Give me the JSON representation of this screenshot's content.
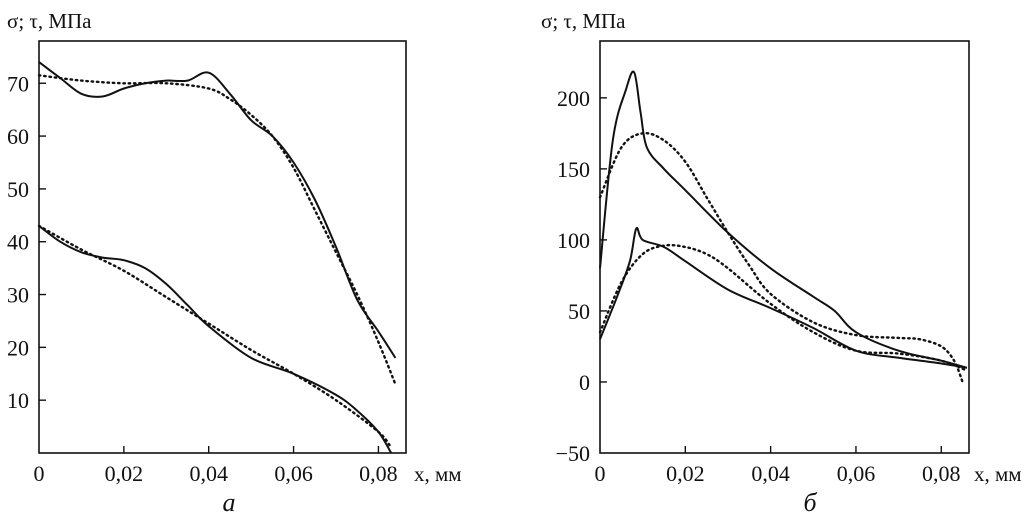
{
  "chart_data": [
    {
      "type": "line",
      "panel_label": "а",
      "ylabel": "σ; τ, МПа",
      "xlabel": "x, мм",
      "xlim": [
        0,
        0.0865
      ],
      "ylim": [
        0,
        78
      ],
      "xticks": [
        0,
        0.02,
        0.04,
        0.06,
        0.08
      ],
      "xtick_labels": [
        "0",
        "0,02",
        "0,04",
        "0,06",
        "0,08"
      ],
      "yticks": [
        10,
        20,
        30,
        40,
        50,
        60,
        70
      ],
      "ytick_labels": [
        "10",
        "20",
        "30",
        "40",
        "50",
        "60",
        "70"
      ],
      "grid": false,
      "series": [
        {
          "style": "solid",
          "x": [
            0,
            0.005,
            0.01,
            0.015,
            0.02,
            0.025,
            0.03,
            0.035,
            0.04,
            0.045,
            0.05,
            0.055,
            0.06,
            0.065,
            0.07,
            0.075,
            0.08,
            0.084
          ],
          "y": [
            74,
            71,
            68,
            67.5,
            69,
            70,
            70.5,
            70.5,
            72,
            68,
            63,
            60,
            55,
            48,
            39,
            29,
            23,
            18
          ]
        },
        {
          "style": "dotted",
          "x": [
            0,
            0.01,
            0.02,
            0.03,
            0.04,
            0.045,
            0.05,
            0.055,
            0.06,
            0.065,
            0.07,
            0.075,
            0.08,
            0.084
          ],
          "y": [
            71.5,
            70.5,
            70,
            70,
            69,
            67,
            64,
            60,
            54,
            46,
            38,
            30,
            21,
            13
          ]
        },
        {
          "style": "solid",
          "x": [
            0,
            0.005,
            0.01,
            0.015,
            0.02,
            0.025,
            0.03,
            0.035,
            0.04,
            0.05,
            0.06,
            0.07,
            0.075,
            0.08,
            0.083
          ],
          "y": [
            43,
            40,
            38,
            37,
            36.5,
            35,
            32,
            28,
            24,
            18,
            15,
            11,
            8,
            4,
            0
          ]
        },
        {
          "style": "dotted",
          "x": [
            0,
            0.01,
            0.02,
            0.03,
            0.04,
            0.05,
            0.06,
            0.07,
            0.08,
            0.083
          ],
          "y": [
            43,
            38.5,
            34.5,
            29.5,
            24.5,
            19.5,
            15,
            10,
            4,
            1
          ]
        }
      ]
    },
    {
      "type": "line",
      "panel_label": "б",
      "ylabel": "σ; τ, МПа",
      "xlabel": "x, мм",
      "xlim": [
        0,
        0.0865
      ],
      "ylim": [
        -50,
        240
      ],
      "xticks": [
        0,
        0.02,
        0.04,
        0.06,
        0.08
      ],
      "xtick_labels": [
        "0",
        "0,02",
        "0,04",
        "0,06",
        "0,08"
      ],
      "yticks": [
        -50,
        0,
        50,
        100,
        150,
        200
      ],
      "ytick_labels": [
        "−50",
        "0",
        "50",
        "100",
        "150",
        "200"
      ],
      "grid": false,
      "series": [
        {
          "style": "solid",
          "x": [
            0,
            0.003,
            0.006,
            0.008,
            0.0095,
            0.011,
            0.015,
            0.02,
            0.03,
            0.04,
            0.05,
            0.055,
            0.06,
            0.07,
            0.08,
            0.086
          ],
          "y": [
            80,
            170,
            205,
            218,
            190,
            165,
            150,
            135,
            105,
            80,
            60,
            50,
            35,
            22,
            15,
            10
          ]
        },
        {
          "style": "dotted",
          "x": [
            0,
            0.005,
            0.01,
            0.015,
            0.02,
            0.025,
            0.03,
            0.035,
            0.04,
            0.05,
            0.06,
            0.07,
            0.075,
            0.08,
            0.083,
            0.085
          ],
          "y": [
            130,
            165,
            175,
            170,
            155,
            130,
            105,
            82,
            62,
            42,
            33,
            31,
            30,
            25,
            15,
            0
          ]
        },
        {
          "style": "solid",
          "x": [
            0,
            0.004,
            0.007,
            0.0085,
            0.01,
            0.015,
            0.02,
            0.03,
            0.04,
            0.05,
            0.06,
            0.07,
            0.08,
            0.086
          ],
          "y": [
            30,
            60,
            85,
            108,
            100,
            95,
            85,
            65,
            52,
            38,
            22,
            17,
            13,
            10
          ]
        },
        {
          "style": "dotted",
          "x": [
            0,
            0.005,
            0.01,
            0.015,
            0.02,
            0.025,
            0.03,
            0.04,
            0.05,
            0.06,
            0.07,
            0.08,
            0.086
          ],
          "y": [
            35,
            70,
            90,
            96,
            95,
            90,
            80,
            55,
            35,
            22,
            20,
            15,
            8
          ]
        }
      ]
    }
  ]
}
